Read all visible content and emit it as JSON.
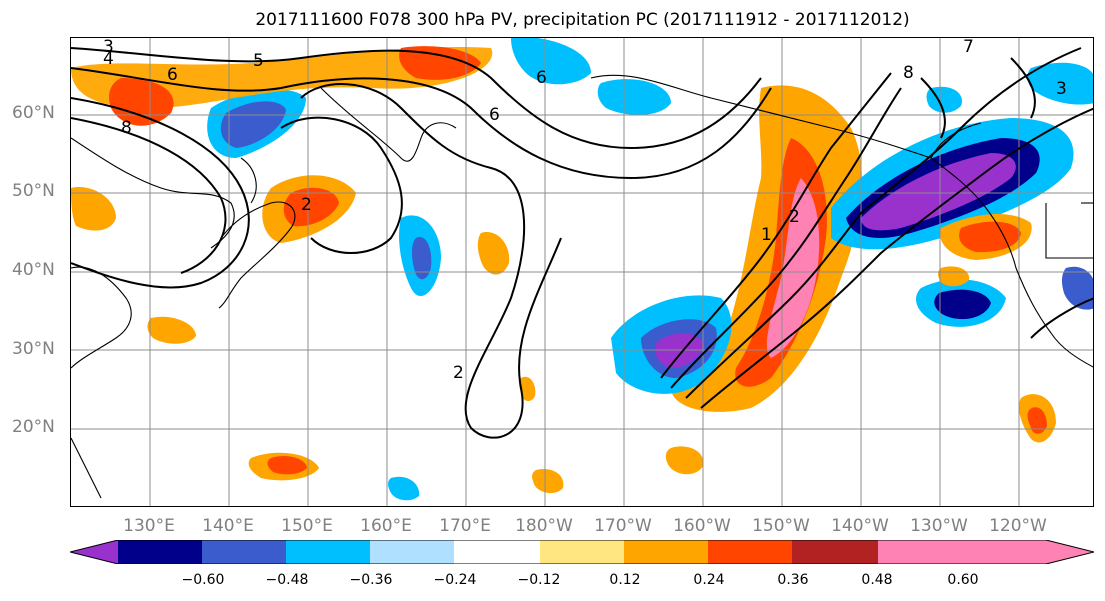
{
  "figure": {
    "title": "2017111600 F078 300 hPa PV, precipitation PC (2017111912 - 2017112012)"
  },
  "axes": {
    "lat_labels": [
      "60°N",
      "50°N",
      "40°N",
      "30°N",
      "20°N"
    ],
    "lon_labels": [
      "130°E",
      "140°E",
      "150°E",
      "160°E",
      "170°E",
      "180°W",
      "170°W",
      "160°W",
      "150°W",
      "140°W",
      "130°W",
      "120°W"
    ]
  },
  "colorbar": {
    "ticks": [
      "−0.60",
      "−0.48",
      "−0.36",
      "−0.24",
      "−0.12",
      "0.12",
      "0.24",
      "0.36",
      "0.48",
      "0.60"
    ],
    "colors": [
      "#9932cc",
      "#00008b",
      "#3a5ccc",
      "#00bfff",
      "#b0e0ff",
      "#ffffff",
      "#ffe680",
      "#ffa500",
      "#ff4500",
      "#b22222",
      "#ff82b4"
    ]
  },
  "contour_labels": [
    "3",
    "4",
    "5",
    "6",
    "8",
    "6",
    "6",
    "2",
    "7",
    "8",
    "3",
    "2",
    "1",
    "2"
  ],
  "chart_data": {
    "type": "heatmap",
    "title": "2017111600 F078 300 hPa PV, precipitation PC (2017111912 - 2017112012)",
    "xlim": [
      "120°E",
      "110°W"
    ],
    "ylim": [
      "10°N",
      "70°N"
    ],
    "x_ticks": [
      "130°E",
      "140°E",
      "150°E",
      "160°E",
      "170°E",
      "180°W",
      "170°W",
      "160°W",
      "150°W",
      "140°W",
      "130°W",
      "120°W"
    ],
    "y_ticks": [
      "20°N",
      "30°N",
      "40°N",
      "50°N",
      "60°N"
    ],
    "colorbar_levels": [
      -0.6,
      -0.48,
      -0.36,
      -0.24,
      -0.12,
      0.12,
      0.24,
      0.36,
      0.48,
      0.6
    ],
    "grid": true
  }
}
